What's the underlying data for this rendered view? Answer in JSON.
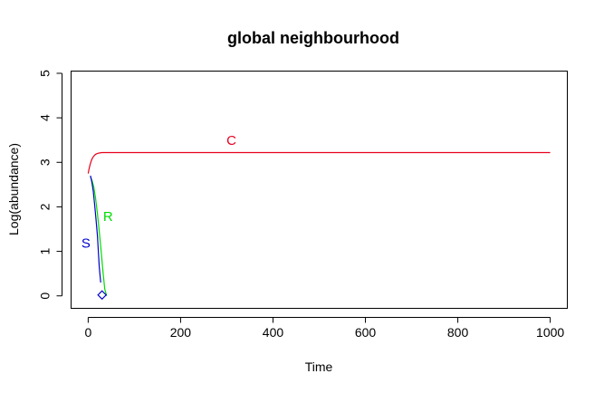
{
  "chart_data": {
    "type": "line",
    "title": "global neighbourhood",
    "xlabel": "Time",
    "ylabel": "Log(abundance)",
    "xlim": [
      -37,
      1037
    ],
    "ylim": [
      -0.28,
      5.05
    ],
    "xticks": [
      0,
      200,
      400,
      600,
      800,
      1000
    ],
    "yticks": [
      0,
      1,
      2,
      3,
      4,
      5
    ],
    "grid": false,
    "legend": "none",
    "series": [
      {
        "name": "C",
        "color": "#e8001c",
        "label_at": [
          310,
          3.47
        ],
        "points": [
          [
            0,
            2.75
          ],
          [
            2,
            2.86
          ],
          [
            4,
            2.94
          ],
          [
            6,
            3.01
          ],
          [
            8,
            3.07
          ],
          [
            10,
            3.11
          ],
          [
            13,
            3.15
          ],
          [
            16,
            3.18
          ],
          [
            20,
            3.2
          ],
          [
            25,
            3.21
          ],
          [
            30,
            3.22
          ],
          [
            50,
            3.22
          ],
          [
            100,
            3.22
          ],
          [
            200,
            3.22
          ],
          [
            300,
            3.22
          ],
          [
            400,
            3.22
          ],
          [
            500,
            3.22
          ],
          [
            600,
            3.22
          ],
          [
            700,
            3.22
          ],
          [
            800,
            3.22
          ],
          [
            900,
            3.22
          ],
          [
            1000,
            3.22
          ]
        ]
      },
      {
        "name": "R",
        "color": "#00dd00",
        "label_at": [
          43,
          1.76
        ],
        "points": [
          [
            5,
            2.67
          ],
          [
            8,
            2.6
          ],
          [
            12,
            2.45
          ],
          [
            16,
            2.2
          ],
          [
            20,
            1.85
          ],
          [
            24,
            1.45
          ],
          [
            28,
            1.0
          ],
          [
            32,
            0.55
          ],
          [
            36,
            0.15
          ],
          [
            40,
            0.0
          ]
        ]
      },
      {
        "name": "S",
        "color": "#0000cc",
        "label_at": [
          -5,
          1.16
        ],
        "points": [
          [
            5,
            2.7
          ],
          [
            8,
            2.55
          ],
          [
            11,
            2.35
          ],
          [
            14,
            2.05
          ],
          [
            17,
            1.7
          ],
          [
            20,
            1.35
          ],
          [
            22,
            1.0
          ],
          [
            24,
            0.65
          ],
          [
            27,
            0.3
          ]
        ]
      }
    ],
    "marker": {
      "symbol": "diamond",
      "color": "#0000cc",
      "x": 30,
      "y": 0.02
    }
  }
}
